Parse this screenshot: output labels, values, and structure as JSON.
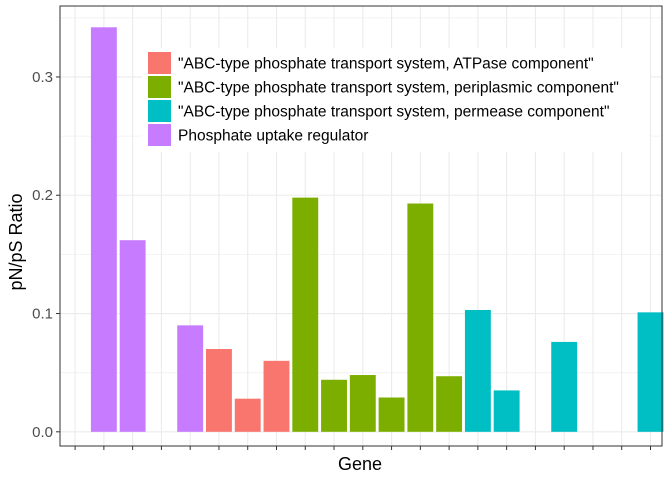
{
  "chart_data": {
    "type": "bar",
    "title": "",
    "xlabel": "Gene",
    "ylabel": "pN/pS Ratio",
    "ylim": [
      -0.012,
      0.36
    ],
    "yticks": [
      0.0,
      0.1,
      0.2,
      0.3
    ],
    "ytick_labels": [
      "0.0",
      "0.1",
      "0.2",
      "0.3"
    ],
    "grid": true,
    "legend_position": "top-right inside",
    "num_categories": 21,
    "series": [
      {
        "name": "\"ABC-type phosphate transport system, ATPase component\"",
        "color": "#F8766D"
      },
      {
        "name": "\"ABC-type phosphate transport system, periplasmic component\"",
        "color": "#7CAE00"
      },
      {
        "name": "\"ABC-type phosphate transport system, permease component\"",
        "color": "#00BFC4"
      },
      {
        "name": "Phosphate uptake regulator",
        "color": "#C77CFF"
      }
    ],
    "bars": [
      {
        "position": 1,
        "series": 3,
        "value": 0.342
      },
      {
        "position": 2,
        "series": 3,
        "value": 0.162
      },
      {
        "position": 4,
        "series": 3,
        "value": 0.09
      },
      {
        "position": 5,
        "series": 0,
        "value": 0.07
      },
      {
        "position": 6,
        "series": 0,
        "value": 0.028
      },
      {
        "position": 7,
        "series": 0,
        "value": 0.06
      },
      {
        "position": 8,
        "series": 1,
        "value": 0.198
      },
      {
        "position": 9,
        "series": 1,
        "value": 0.044
      },
      {
        "position": 10,
        "series": 1,
        "value": 0.048
      },
      {
        "position": 11,
        "series": 1,
        "value": 0.029
      },
      {
        "position": 12,
        "series": 1,
        "value": 0.193
      },
      {
        "position": 13,
        "series": 1,
        "value": 0.047
      },
      {
        "position": 14,
        "series": 2,
        "value": 0.103
      },
      {
        "position": 15,
        "series": 2,
        "value": 0.035
      },
      {
        "position": 17,
        "series": 2,
        "value": 0.076
      },
      {
        "position": 20,
        "series": 2,
        "value": 0.101
      }
    ]
  }
}
